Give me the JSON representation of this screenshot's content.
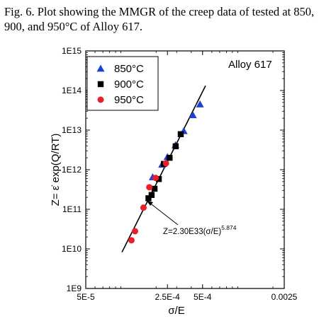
{
  "caption": "Fig. 6. Plot showing the MMGR of the creep data of tested at 850, 900, and 950°C of Alloy 617.",
  "chart_data": {
    "type": "scatter",
    "title": "Alloy 617",
    "xlabel": "σ/E",
    "ylabel": "Z= ε̇ exp(Q/RT)",
    "x_scale": "log",
    "y_scale": "log",
    "xlim": [
      5e-05,
      0.0025
    ],
    "ylim": [
      1000000000.0,
      1000000000000000.0
    ],
    "x_ticks": [
      5e-05,
      0.00025,
      0.0005,
      0.0025
    ],
    "x_tick_labels": [
      "5E-5",
      "2.5E-4",
      "5E-4",
      "0.0025"
    ],
    "y_ticks": [
      1000000000.0,
      10000000000.0,
      100000000000.0,
      1000000000000.0,
      10000000000000.0,
      100000000000000.0,
      1000000000000000.0
    ],
    "y_tick_labels": [
      "1E9",
      "1E10",
      "1E11",
      "1E12",
      "1E13",
      "1E14",
      "1E15"
    ],
    "legend_position": "top-left",
    "series": [
      {
        "name": "850°C",
        "marker": "triangle",
        "color": "#1f3fd6",
        "x": [
          0.000187,
          0.000225,
          0.00025,
          0.000293,
          0.000345,
          0.000413,
          0.000475
        ],
        "y": [
          650000000000.0,
          1350000000000.0,
          2100000000000.0,
          4200000000000.0,
          9500000000000.0,
          24000000000000.0,
          45000000000000.0
        ]
      },
      {
        "name": "900°C",
        "marker": "square",
        "color": "#000000",
        "x": [
          0.000172,
          0.000183,
          0.000194,
          0.000211,
          0.000233,
          0.000261,
          0.000294,
          0.000325
        ],
        "y": [
          190000000000.0,
          230000000000.0,
          330000000000.0,
          580000000000.0,
          1400000000000.0,
          2000000000000.0,
          3900000000000.0,
          7900000000000.0
        ]
      },
      {
        "name": "950°C",
        "marker": "circle",
        "color": "#e8202a",
        "x": [
          0.000123,
          0.000132,
          0.000156,
          0.000175,
          0.000198,
          0.000243
        ],
        "y": [
          16500000000.0,
          28000000000.0,
          110000000000.0,
          360000000000.0,
          620000000000.0,
          1450000000000.0
        ]
      }
    ],
    "fit_line": {
      "equation_base": "Z=2.30E33(σ/E)",
      "equation_exponent": "5.874",
      "coefficient": 2.3e+33,
      "exponent": 5.874,
      "x_range": [
        0.000102,
        0.00053
      ]
    }
  }
}
